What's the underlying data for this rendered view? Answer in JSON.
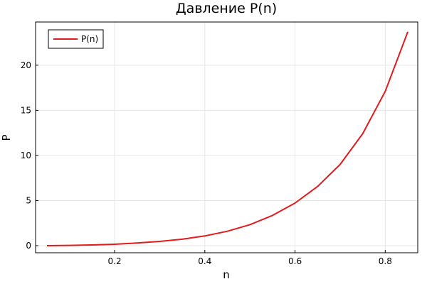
{
  "chart_data": {
    "type": "line",
    "title": "Давление P(n)",
    "xlabel": "n",
    "ylabel": "P",
    "xlim": [
      0.05,
      0.85
    ],
    "ylim": [
      0,
      24
    ],
    "x_ticks": [
      0.2,
      0.4,
      0.6,
      0.8
    ],
    "x_tick_labels": [
      "0.2",
      "0.4",
      "0.6",
      "0.8"
    ],
    "y_ticks": [
      0,
      5,
      10,
      15,
      20
    ],
    "y_tick_labels": [
      "0",
      "5",
      "10",
      "15",
      "20"
    ],
    "grid": true,
    "legend_position": "top-left",
    "series": [
      {
        "name": "P(n)",
        "color": "#e31a1c",
        "x": [
          0.05,
          0.1,
          0.15,
          0.2,
          0.25,
          0.3,
          0.35,
          0.4,
          0.45,
          0.5,
          0.55,
          0.6,
          0.65,
          0.7,
          0.75,
          0.8,
          0.85
        ],
        "y": [
          0.0,
          0.03,
          0.08,
          0.16,
          0.29,
          0.47,
          0.72,
          1.08,
          1.6,
          2.33,
          3.35,
          4.72,
          6.56,
          9.0,
          12.4,
          17.1,
          23.7
        ]
      }
    ]
  }
}
